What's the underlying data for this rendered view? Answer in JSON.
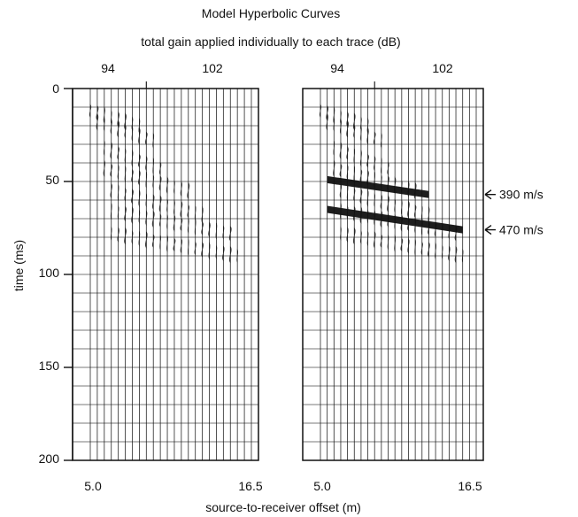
{
  "chart_data": {
    "type": "seismic-wiggle-panels",
    "title": "Model Hyperbolic Curves",
    "subtitle": "total gain applied individually to each trace (dB)",
    "xlabel": "source-to-receiver offset (m)",
    "ylabel": "time (ms)",
    "ylim": [
      0,
      200
    ],
    "y_ticks": [
      0,
      50,
      100,
      150,
      200
    ],
    "panels": [
      {
        "name": "left",
        "x_tick_labels": [
          "5.0",
          "16.5"
        ],
        "top_gain_labels": [
          "94",
          "102"
        ],
        "trace_count": 24,
        "events": []
      },
      {
        "name": "right",
        "x_tick_labels": [
          "5.0",
          "16.5"
        ],
        "top_gain_labels": [
          "94",
          "102"
        ],
        "trace_count": 24,
        "events": [
          {
            "label": "390 m/s",
            "time_ms": 57
          },
          {
            "label": "470 m/s",
            "time_ms": 76
          }
        ]
      }
    ],
    "grid": true
  }
}
